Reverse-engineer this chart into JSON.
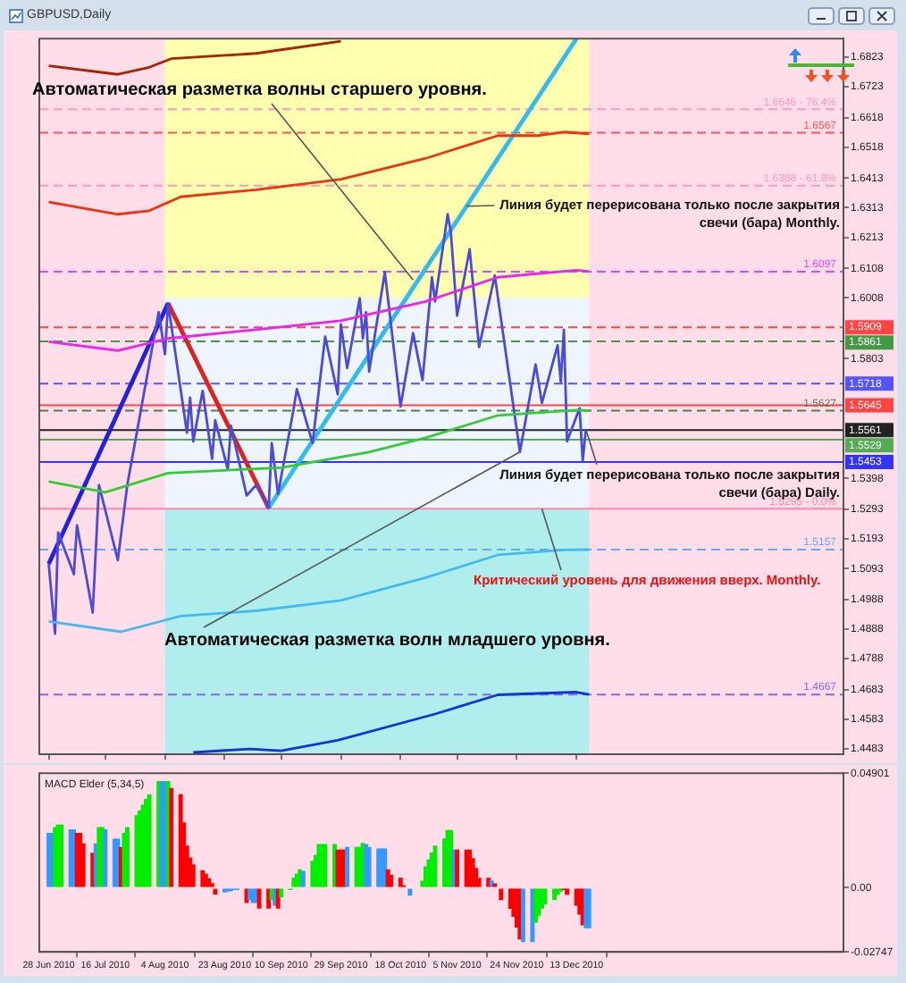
{
  "chart_data": [
    {
      "type": "line",
      "title": "GBPUSD,Daily",
      "tick_labels": "y",
      "xlim": [
        "2010-06-25",
        "2011-03-08"
      ],
      "xticks": [
        {
          "value": "2010-06-28",
          "label": null
        },
        {
          "value": "2010-07-16",
          "label": null
        },
        {
          "value": "2010-08-04",
          "label": null
        },
        {
          "value": "2010-08-23",
          "label": null
        },
        {
          "value": "2010-09-10",
          "label": null
        },
        {
          "value": "2010-09-29",
          "label": null
        },
        {
          "value": "2010-10-18",
          "label": null
        },
        {
          "value": "2010-11-05",
          "label": null
        },
        {
          "value": "2010-11-24",
          "label": null
        },
        {
          "value": "2010-12-13",
          "label": null
        }
      ],
      "ylim": [
        1.4465,
        1.6885
      ],
      "yticks": [
        1.6823,
        1.6723,
        1.6618,
        1.6518,
        1.6413,
        1.6313,
        1.6213,
        1.6108,
        1.6008,
        1.5803,
        1.5398,
        1.5293,
        1.5193,
        1.5093,
        1.4988,
        1.4888,
        1.4788,
        1.4683,
        1.4583,
        1.4483
      ],
      "bands": [
        {
          "axis": "y",
          "from": 1.6008,
          "to": 1.6885,
          "color": "#ffffb0"
        },
        {
          "axis": "y",
          "from": 1.5293,
          "to": 1.6008,
          "color": "#eef5ff"
        },
        {
          "axis": "y",
          "from": 1.4465,
          "to": 1.5293,
          "color": "#b0eeee"
        },
        {
          "axis": "x",
          "from": "2010-06-25",
          "to": "2010-08-04",
          "color": "#ffdde9"
        },
        {
          "axis": "x",
          "from": "2010-12-17",
          "to": "2011-03-08",
          "color": "#ffdde9"
        }
      ],
      "ref_lines": [
        {
          "axis": "y",
          "value": 1.6646,
          "label": "1.6646 - 76.4%",
          "color": "#ff99bb",
          "line_style": "dashed"
        },
        {
          "axis": "y",
          "value": 1.6567,
          "label": "1.6567",
          "color": "#ff5555",
          "line_style": "dashed"
        },
        {
          "axis": "y",
          "value": 1.6388,
          "label": "1.6388 - 61.8%",
          "color": "#ff99bb",
          "line_style": "dashed"
        },
        {
          "axis": "y",
          "value": 1.6097,
          "label": "1.6097",
          "color": "#ee44ee",
          "line_style": "dashed"
        },
        {
          "axis": "y",
          "value": 1.5909,
          "label": "1.5909",
          "color": "#ff4444",
          "line_style": "dashed"
        },
        {
          "axis": "y",
          "value": 1.5861,
          "label": "1.5861",
          "color": "#449944",
          "line_style": "dashed"
        },
        {
          "axis": "y",
          "value": 1.5718,
          "label": "1.5718",
          "color": "#5555ff",
          "line_style": "dashed"
        },
        {
          "axis": "y",
          "value": 1.5645,
          "label": "1.5645",
          "color": "#ff4444",
          "line_style": "solid"
        },
        {
          "axis": "y",
          "value": 1.5627,
          "label": "1.5627",
          "color": "#4f7f4f",
          "line_style": "dashed"
        },
        {
          "axis": "y",
          "value": 1.5561,
          "label": "1.5561",
          "color": "#222222",
          "line_style": "solid"
        },
        {
          "axis": "y",
          "value": 1.5529,
          "label": "1.5529",
          "color": "#55aa55",
          "line_style": "solid"
        },
        {
          "axis": "y",
          "value": 1.5453,
          "label": "1.5453",
          "color": "#3333ff",
          "line_style": "solid"
        },
        {
          "axis": "y",
          "value": 1.5295,
          "label": "1.5295 - 0.0%",
          "color": "#ff88aa",
          "line_style": "solid"
        },
        {
          "axis": "y",
          "value": 1.5157,
          "label": "1.5157",
          "color": "#66aaee",
          "line_style": "dashed"
        },
        {
          "axis": "y",
          "value": 1.4667,
          "label": "1.4667",
          "color": "#8866ee",
          "line_style": "dashed"
        }
      ],
      "annotations": [
        {
          "text": "Автоматическая разметка волны старшего уровня.",
          "x": "2010-10-22",
          "y": 1.6069
        },
        {
          "text": "Линия будет перерисована только после закрытия свечи (бара) Monthly.",
          "x": "2010-11-08",
          "y": 1.6318
        },
        {
          "text": "Линия будет перерисована только после закрытия свечи (бара) Daily.",
          "x": "2010-12-16",
          "y": 1.5564
        },
        {
          "text": "Критический уровень для движения вверх. Monthly.",
          "x": "2010-12-02",
          "y": 1.5295
        },
        {
          "text": "Автоматическая разметка волн младшего уровня.",
          "x": "2010-11-25",
          "y": 1.5487
        }
      ],
      "series": [
        {
          "color": "#aa2200",
          "x": [
            "2010-06-28",
            "2010-07-20",
            "2010-07-30",
            "2010-08-06",
            "2010-09-02",
            "2010-09-29"
          ],
          "values": [
            1.6793,
            1.6764,
            1.6788,
            1.6817,
            1.6835,
            1.6876
          ]
        },
        {
          "color": "#ee3311",
          "x": [
            "2010-06-28",
            "2010-07-20",
            "2010-07-30",
            "2010-08-09",
            "2010-09-02",
            "2010-09-29",
            "2010-10-26",
            "2010-11-18",
            "2010-12-01",
            "2010-12-09",
            "2010-12-17"
          ],
          "values": [
            1.6332,
            1.6291,
            1.6303,
            1.635,
            1.6374,
            1.6409,
            1.648,
            1.6557,
            1.6557,
            1.6569,
            1.6563
          ]
        },
        {
          "color": "#ee22ee",
          "x": [
            "2010-06-28",
            "2010-07-20",
            "2010-08-05",
            "2010-09-02",
            "2010-09-29",
            "2010-10-26",
            "2010-11-18",
            "2010-12-13",
            "2010-12-17"
          ],
          "values": [
            1.586,
            1.583,
            1.5871,
            1.5901,
            1.5931,
            1.5996,
            1.6078,
            1.6102,
            1.6097
          ]
        },
        {
          "color": "#33cc33",
          "x": [
            "2010-06-28",
            "2010-07-16",
            "2010-08-05",
            "2010-09-10",
            "2010-10-08",
            "2010-10-26",
            "2010-11-18",
            "2010-12-13",
            "2010-12-17"
          ],
          "values": [
            1.5387,
            1.5351,
            1.5416,
            1.5434,
            1.5487,
            1.5535,
            1.5611,
            1.5629,
            1.5627
          ]
        },
        {
          "color": "#44bbee",
          "x": [
            "2010-06-28",
            "2010-07-21",
            "2010-08-09",
            "2010-09-02",
            "2010-09-29",
            "2010-10-26",
            "2010-11-18",
            "2010-12-09",
            "2010-12-17"
          ],
          "values": [
            1.4914,
            1.4879,
            1.4932,
            1.495,
            1.4985,
            1.5062,
            1.5139,
            1.5156,
            1.5157
          ]
        },
        {
          "color": "#1133dd",
          "x": [
            "2010-08-13",
            "2010-08-31",
            "2010-09-10",
            "2010-09-28",
            "2010-10-29",
            "2010-11-18",
            "2010-12-13",
            "2010-12-17"
          ],
          "values": [
            1.4471,
            1.4483,
            1.4477,
            1.4512,
            1.4601,
            1.4666,
            1.4675,
            1.4667
          ]
        },
        {
          "color": "#4b4bd6",
          "x": [
            "2010-06-28",
            "2010-06-30",
            "2010-07-01",
            "2010-07-06",
            "2010-07-07",
            "2010-07-12",
            "2010-07-14",
            "2010-07-20",
            "2010-07-23",
            "2010-08-02",
            "2010-08-04",
            "2010-08-05",
            "2010-08-11",
            "2010-08-12",
            "2010-08-13",
            "2010-08-16",
            "2010-08-19",
            "2010-08-20",
            "2010-08-24",
            "2010-08-25",
            "2010-08-30",
            "2010-09-02",
            "2010-09-06",
            "2010-09-07",
            "2010-09-09",
            "2010-09-14",
            "2010-09-15",
            "2010-09-20",
            "2010-09-24",
            "2010-09-28",
            "2010-09-29",
            "2010-10-01",
            "2010-10-05",
            "2010-10-06",
            "2010-10-07",
            "2010-10-08",
            "2010-10-13",
            "2010-10-18",
            "2010-10-22",
            "2010-10-25",
            "2010-10-28",
            "2010-10-29",
            "2010-11-02",
            "2010-11-03",
            "2010-11-05",
            "2010-11-09",
            "2010-11-12",
            "2010-11-17",
            "2010-11-25",
            "2010-11-30",
            "2010-12-02",
            "2010-12-07",
            "2010-12-08",
            "2010-12-09",
            "2010-12-10",
            "2010-12-14",
            "2010-12-15",
            "2010-12-16"
          ],
          "values": [
            1.5109,
            1.4873,
            1.5215,
            1.5074,
            1.5239,
            1.4944,
            1.5375,
            1.5121,
            1.5375,
            1.596,
            1.5818,
            1.599,
            1.5552,
            1.5671,
            1.5523,
            1.5694,
            1.5464,
            1.5594,
            1.5428,
            1.5576,
            1.534,
            1.5375,
            1.5298,
            1.5517,
            1.5345,
            1.5635,
            1.57,
            1.5517,
            1.5877,
            1.5682,
            1.5919,
            1.5771,
            1.6007,
            1.5871,
            1.596,
            1.5759,
            1.6096,
            1.5641,
            1.5889,
            1.573,
            1.6078,
            1.5996,
            1.6291,
            1.6232,
            1.5948,
            1.6173,
            1.5842,
            1.6084,
            1.5487,
            1.5783,
            1.5653,
            1.5848,
            1.5724,
            1.5901,
            1.5523,
            1.5635,
            1.5458,
            1.5564
          ]
        },
        {
          "color": "#2222dd",
          "x": [
            "2010-06-28",
            "2010-08-05"
          ],
          "values": [
            1.5109,
            1.599
          ]
        },
        {
          "color": "#dd2222",
          "x": [
            "2010-08-05",
            "2010-09-06"
          ],
          "values": [
            1.599,
            1.5298
          ]
        },
        {
          "color": "#33bbee",
          "x": [
            "2010-09-06",
            "2010-12-13"
          ],
          "values": [
            1.5298,
            1.6885
          ]
        }
      ]
    },
    {
      "type": "bar",
      "title": "MACD Elder (5,34,5)",
      "xlim": [
        "2010-06-25",
        "2011-03-08"
      ],
      "xticks": [
        {
          "value": "2010-06-28",
          "label": "28 Jun 2010"
        },
        {
          "value": "2010-07-16",
          "label": "16 Jul 2010"
        },
        {
          "value": "2010-08-04",
          "label": "4 Aug 2010"
        },
        {
          "value": "2010-08-23",
          "label": "23 Aug 2010"
        },
        {
          "value": "2010-09-10",
          "label": "10 Sep 2010"
        },
        {
          "value": "2010-09-29",
          "label": "29 Sep 2010"
        },
        {
          "value": "2010-10-18",
          "label": "18 Oct 2010"
        },
        {
          "value": "2010-11-05",
          "label": "5 Nov 2010"
        },
        {
          "value": "2010-11-24",
          "label": "24 Nov 2010"
        },
        {
          "value": "2010-12-13",
          "label": "13 Dec 2010"
        }
      ],
      "ylim": [
        -0.02747,
        0.04901
      ],
      "yticks": [
        0.04901,
        {
          "value": 0,
          "label": "0.00"
        },
        -0.02747
      ],
      "x": [
        "2010-06-28",
        "2010-06-29",
        "2010-06-30",
        "2010-07-01",
        "2010-07-02",
        "2010-07-05",
        "2010-07-06",
        "2010-07-07",
        "2010-07-08",
        "2010-07-09",
        "2010-07-12",
        "2010-07-13",
        "2010-07-14",
        "2010-07-15",
        "2010-07-16",
        "2010-07-19",
        "2010-07-20",
        "2010-07-21",
        "2010-07-22",
        "2010-07-23",
        "2010-07-26",
        "2010-07-27",
        "2010-07-28",
        "2010-07-29",
        "2010-07-30",
        "2010-08-02",
        "2010-08-03",
        "2010-08-04",
        "2010-08-05",
        "2010-08-06",
        "2010-08-09",
        "2010-08-10",
        "2010-08-11",
        "2010-08-12",
        "2010-08-13",
        "2010-08-16",
        "2010-08-17",
        "2010-08-18",
        "2010-08-19",
        "2010-08-20",
        "2010-08-23",
        "2010-08-24",
        "2010-08-25",
        "2010-08-26",
        "2010-08-27",
        "2010-08-30",
        "2010-08-31",
        "2010-09-01",
        "2010-09-02",
        "2010-09-03",
        "2010-09-06",
        "2010-09-07",
        "2010-09-08",
        "2010-09-09",
        "2010-09-10",
        "2010-09-13",
        "2010-09-14",
        "2010-09-15",
        "2010-09-16",
        "2010-09-17",
        "2010-09-20",
        "2010-09-21",
        "2010-09-22",
        "2010-09-23",
        "2010-09-24",
        "2010-09-27",
        "2010-09-28",
        "2010-09-29",
        "2010-09-30",
        "2010-10-01",
        "2010-10-04",
        "2010-10-05",
        "2010-10-06",
        "2010-10-07",
        "2010-10-08",
        "2010-10-11",
        "2010-10-12",
        "2010-10-13",
        "2010-10-14",
        "2010-10-15",
        "2010-10-18",
        "2010-10-19",
        "2010-10-20",
        "2010-10-21",
        "2010-10-22",
        "2010-10-25",
        "2010-10-26",
        "2010-10-27",
        "2010-10-28",
        "2010-10-29",
        "2010-11-01",
        "2010-11-02",
        "2010-11-03",
        "2010-11-04",
        "2010-11-05",
        "2010-11-08",
        "2010-11-09",
        "2010-11-10",
        "2010-11-11",
        "2010-11-12",
        "2010-11-15",
        "2010-11-16",
        "2010-11-17",
        "2010-11-18",
        "2010-11-19",
        "2010-11-22",
        "2010-11-23",
        "2010-11-24",
        "2010-11-25",
        "2010-11-26",
        "2010-11-29",
        "2010-11-30",
        "2010-12-01",
        "2010-12-02",
        "2010-12-03",
        "2010-12-06",
        "2010-12-07",
        "2010-12-08",
        "2010-12-09",
        "2010-12-10",
        "2010-12-13",
        "2010-12-14",
        "2010-12-15",
        "2010-12-16",
        "2010-12-17"
      ],
      "values": [
        0.0235,
        0.0235,
        0.026,
        0.027,
        0.027,
        0.025,
        0.025,
        0.0235,
        0.0235,
        0.019,
        0.015,
        0.019,
        0.026,
        0.026,
        0.025,
        0.021,
        0.021,
        0.0175,
        0.0235,
        0.026,
        0.031,
        0.033,
        0.0355,
        0.038,
        0.04,
        0.0456,
        0.0456,
        0.0456,
        0.0456,
        0.0427,
        0.04,
        0.028,
        0.018,
        0.013,
        0.01,
        0.0075,
        0.006,
        0.004,
        0.002,
        -0.0029,
        -0.002,
        -0.0017,
        -0.0015,
        -0.001,
        -0.001,
        -0.0065,
        -0.0053,
        -0.0065,
        -0.0065,
        -0.0089,
        -0.0089,
        -0.0053,
        -0.0077,
        -0.0089,
        -0.0041,
        -0.001,
        0.0043,
        0.006,
        0.0079,
        0.0072,
        0.0115,
        0.014,
        0.0187,
        0.0187,
        0.0187,
        0.0187,
        0.0163,
        0.0163,
        0.0163,
        0.0175,
        0.0175,
        0.0175,
        0.0192,
        0.0187,
        0.0175,
        0.0168,
        0.0168,
        0.0168,
        0.0079,
        0.0055,
        0.0043,
        0.001,
        null,
        -0.0034,
        null,
        0.003,
        0.0091,
        0.0121,
        0.0151,
        0.018,
        0.0211,
        0.0247,
        0.0247,
        0.0163,
        0.0163,
        0.0163,
        0.0163,
        0.0127,
        0.0085,
        0.0043,
        0.0043,
        0.0031,
        0.0019,
        null,
        -0.0053,
        -0.009,
        -0.0125,
        -0.017,
        -0.0221,
        -0.0233,
        -0.0233,
        -0.0149,
        -0.012,
        -0.0089,
        -0.0071,
        -0.0053,
        -0.003,
        -0.0017,
        -0.001,
        -0.003,
        -0.0077,
        -0.0115,
        -0.0161,
        -0.0173,
        -0.0173
      ],
      "colors": [
        "#3399ff",
        "#3399ff",
        "#00ee00",
        "#00ee00",
        "#00ee00",
        "#3399ff",
        "#3399ff",
        "#ff0000",
        "#ff0000",
        "#ff0000",
        "#ff0000",
        "#3399ff",
        "#00ee00",
        "#00ee00",
        "#3399ff",
        "#3399ff",
        "#3399ff",
        "#ff0000",
        "#00ee00",
        "#00ee00",
        "#00ee00",
        "#00ee00",
        "#00ee00",
        "#00ee00",
        "#00ee00",
        "#00ee00",
        "#3399ff",
        "#3399ff",
        "#00ee00",
        "#ff0000",
        "#ff0000",
        "#ff0000",
        "#ff0000",
        "#ff0000",
        "#ff0000",
        "#ff0000",
        "#ff0000",
        "#ff0000",
        "#ff0000",
        "#ff0000",
        "#3399ff",
        "#3399ff",
        "#3399ff",
        "#3399ff",
        "#3399ff",
        "#ff0000",
        "#3399ff",
        "#3399ff",
        "#3399ff",
        "#ff0000",
        "#ff0000",
        "#00ee00",
        "#3399ff",
        "#ff0000",
        "#00ee00",
        "#00ee00",
        "#00ee00",
        "#00ee00",
        "#00ee00",
        "#3399ff",
        "#00ee00",
        "#00ee00",
        "#00ee00",
        "#00ee00",
        "#00ee00",
        "#00ee00",
        "#ff0000",
        "#ff0000",
        "#ff0000",
        "#3399ff",
        "#00ee00",
        "#00ee00",
        "#00ee00",
        "#3399ff",
        "#3399ff",
        "#3399ff",
        "#3399ff",
        "#3399ff",
        "#ff0000",
        "#ff0000",
        "#ff0000",
        "#ff0000",
        "#ff0000",
        "#3399ff",
        "#00ee00",
        "#00ee00",
        "#00ee00",
        "#00ee00",
        "#00ee00",
        "#00ee00",
        "#00ee00",
        "#00ee00",
        "#00ee00",
        "#3399ff",
        "#ff0000",
        "#ff0000",
        "#ff0000",
        "#ff0000",
        "#ff0000",
        "#ff0000",
        "#ff0000",
        "#3399ff",
        "#ff0000",
        "#ff0000",
        "#ff0000",
        "#ff0000",
        "#ff0000",
        "#ff0000",
        "#ff0000",
        "#3399ff",
        "#3399ff",
        "#00ee00",
        "#00ee00",
        "#00ee00",
        "#00ee00",
        "#00ee00",
        "#00ee00",
        "#00ee00",
        "#ff0000",
        "#ff0000",
        "#ff0000",
        "#ff0000",
        "#ff0000",
        "#3399ff",
        "#3399ff"
      ]
    }
  ]
}
